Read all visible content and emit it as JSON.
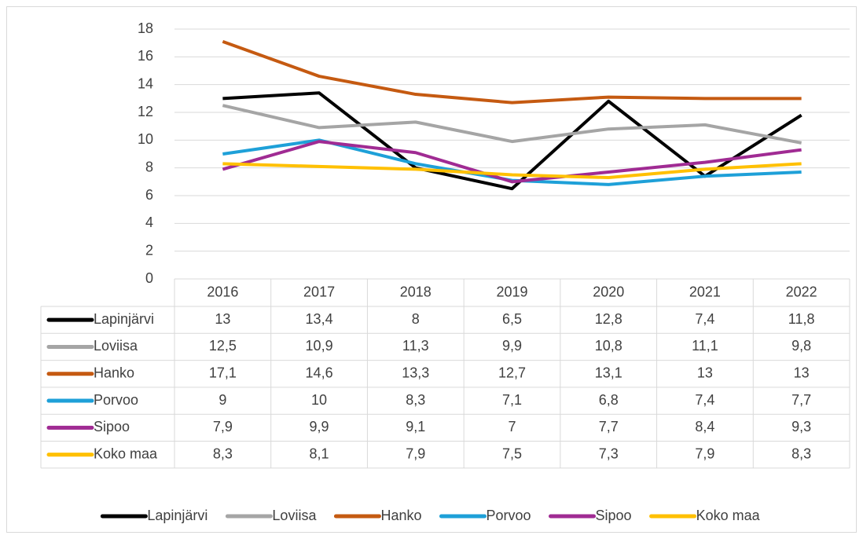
{
  "chart_data": {
    "type": "line",
    "categories": [
      "2016",
      "2017",
      "2018",
      "2019",
      "2020",
      "2021",
      "2022"
    ],
    "ylim": [
      0,
      18
    ],
    "yticks": [
      0,
      2,
      4,
      6,
      8,
      10,
      12,
      14,
      16,
      18
    ],
    "grid": true,
    "legend": "bottom",
    "data_table": true,
    "series": [
      {
        "name": "Lapinjärvi",
        "color": "#000000",
        "values": [
          13,
          13.4,
          8,
          6.5,
          12.8,
          7.4,
          11.8
        ],
        "value_labels": [
          "13",
          "13,4",
          "8",
          "6,5",
          "12,8",
          "7,4",
          "11,8"
        ]
      },
      {
        "name": "Loviisa",
        "color": "#a5a5a5",
        "values": [
          12.5,
          10.9,
          11.3,
          9.9,
          10.8,
          11.1,
          9.8
        ],
        "value_labels": [
          "12,5",
          "10,9",
          "11,3",
          "9,9",
          "10,8",
          "11,1",
          "9,8"
        ]
      },
      {
        "name": "Hanko",
        "color": "#c55a11",
        "values": [
          17.1,
          14.6,
          13.3,
          12.7,
          13.1,
          13,
          13
        ],
        "value_labels": [
          "17,1",
          "14,6",
          "13,3",
          "12,7",
          "13,1",
          "13",
          "13"
        ]
      },
      {
        "name": "Porvoo",
        "color": "#1ea0d8",
        "values": [
          9,
          10,
          8.3,
          7.1,
          6.8,
          7.4,
          7.7
        ],
        "value_labels": [
          "9",
          "10",
          "8,3",
          "7,1",
          "6,8",
          "7,4",
          "7,7"
        ]
      },
      {
        "name": "Sipoo",
        "color": "#a02b93",
        "values": [
          7.9,
          9.9,
          9.1,
          7,
          7.7,
          8.4,
          9.3
        ],
        "value_labels": [
          "7,9",
          "9,9",
          "9,1",
          "7",
          "7,7",
          "8,4",
          "9,3"
        ]
      },
      {
        "name": "Koko maa",
        "color": "#ffc000",
        "values": [
          8.3,
          8.1,
          7.9,
          7.5,
          7.3,
          7.9,
          8.3
        ],
        "value_labels": [
          "8,3",
          "8,1",
          "7,9",
          "7,5",
          "7,3",
          "7,9",
          "8,3"
        ]
      }
    ]
  }
}
